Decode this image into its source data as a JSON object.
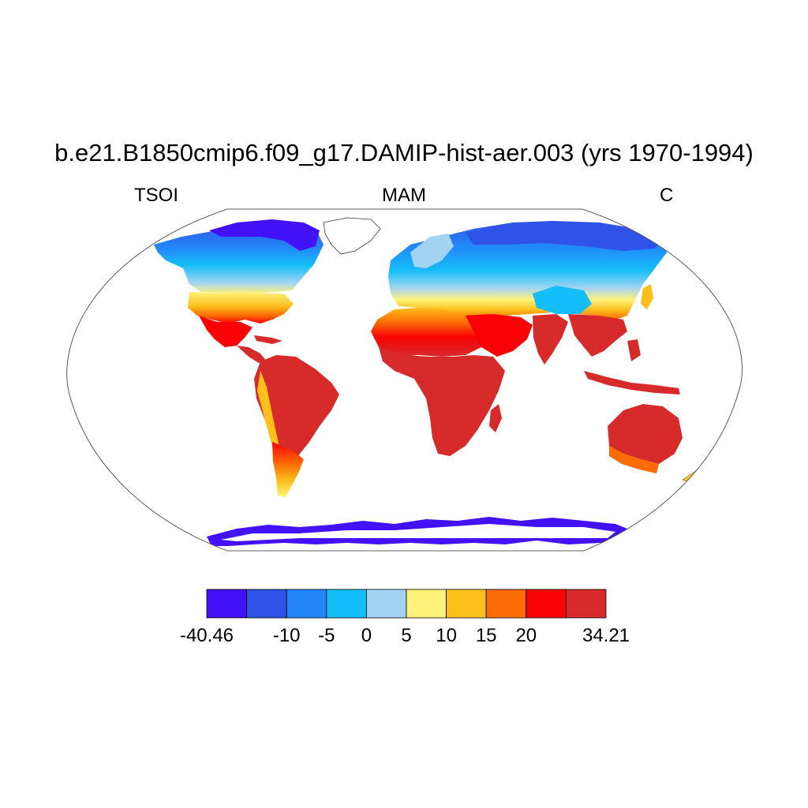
{
  "header": {
    "title": "b.e21.B1850cmip6.f09_g17.DAMIP-hist-aer.003 (yrs 1970-1994)",
    "variable": "TSOI",
    "season": "MAM",
    "units": "C"
  },
  "colorbar": {
    "colors": [
      "#4211f5",
      "#2f53e6",
      "#2386f9",
      "#15bef8",
      "#a3d4f3",
      "#fff27a",
      "#fcbf1c",
      "#fb6c04",
      "#f90205",
      "#d72b2b"
    ],
    "labels": [
      "-40.46",
      "",
      "-10",
      "-5",
      "0",
      "5",
      "10",
      "15",
      "20",
      "",
      "34.21"
    ]
  },
  "map": {
    "projection": "Robinson",
    "ocean_color": "#ffffff",
    "regions": [
      {
        "name": "canada-arctic",
        "color_index": 0
      },
      {
        "name": "canada",
        "color_index": 3
      },
      {
        "name": "usa",
        "color_index": 5
      },
      {
        "name": "mexico",
        "color_index": 8
      },
      {
        "name": "south-america",
        "color_index": 9
      },
      {
        "name": "andes",
        "color_index": 6
      },
      {
        "name": "greenland",
        "color_index": null
      },
      {
        "name": "europe",
        "color_index": 4
      },
      {
        "name": "siberia",
        "color_index": 1
      },
      {
        "name": "tibet",
        "color_index": 3
      },
      {
        "name": "africa",
        "color_index": 9
      },
      {
        "name": "middle-east",
        "color_index": 8
      },
      {
        "name": "india",
        "color_index": 9
      },
      {
        "name": "southeast-asia",
        "color_index": 9
      },
      {
        "name": "australia",
        "color_index": 9
      },
      {
        "name": "new-zealand",
        "color_index": 6
      },
      {
        "name": "antarctica-coast",
        "color_index": 0
      }
    ]
  }
}
